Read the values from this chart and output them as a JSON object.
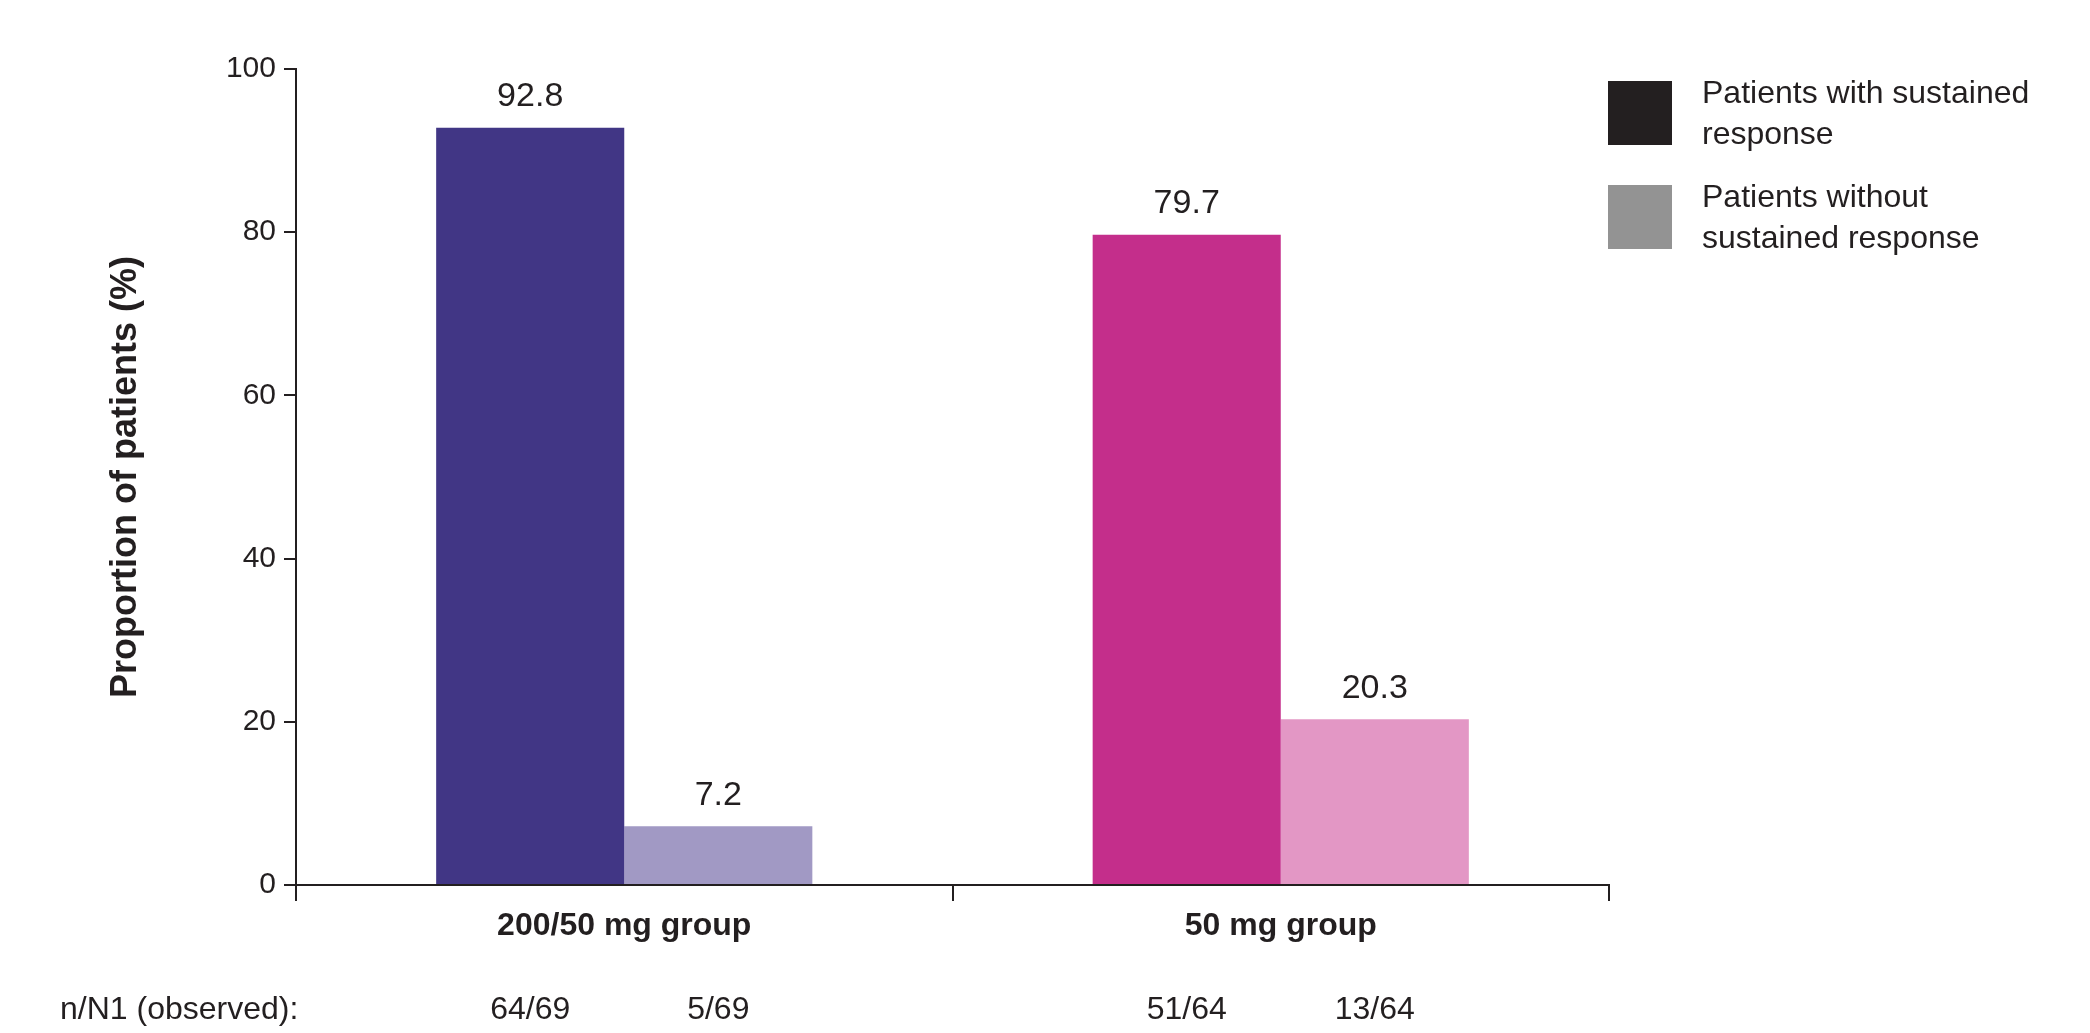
{
  "chart_data": {
    "type": "bar",
    "categories": [
      "200/50 mg group",
      "50 mg group"
    ],
    "ylabel": "Proportion of patients (%)",
    "series": [
      {
        "name": "Patients with sustained response",
        "color": "#231f20",
        "colors": [
          "#413685",
          "#c42e8b"
        ],
        "values": [
          92.8,
          79.7
        ]
      },
      {
        "name": "Patients without sustained response",
        "color": "#939393",
        "colors": [
          "#a199c4",
          "#e397c5"
        ],
        "values": [
          7.2,
          20.3
        ]
      }
    ],
    "ylim": [
      0,
      100
    ],
    "yticks": [
      0,
      20,
      40,
      60,
      80,
      100
    ],
    "data_labels": true,
    "grid": false,
    "legend": "top right",
    "annotations": [
      "n/N1 (observed):",
      "64/69",
      "5/69",
      "51/64",
      "13/64"
    ]
  }
}
